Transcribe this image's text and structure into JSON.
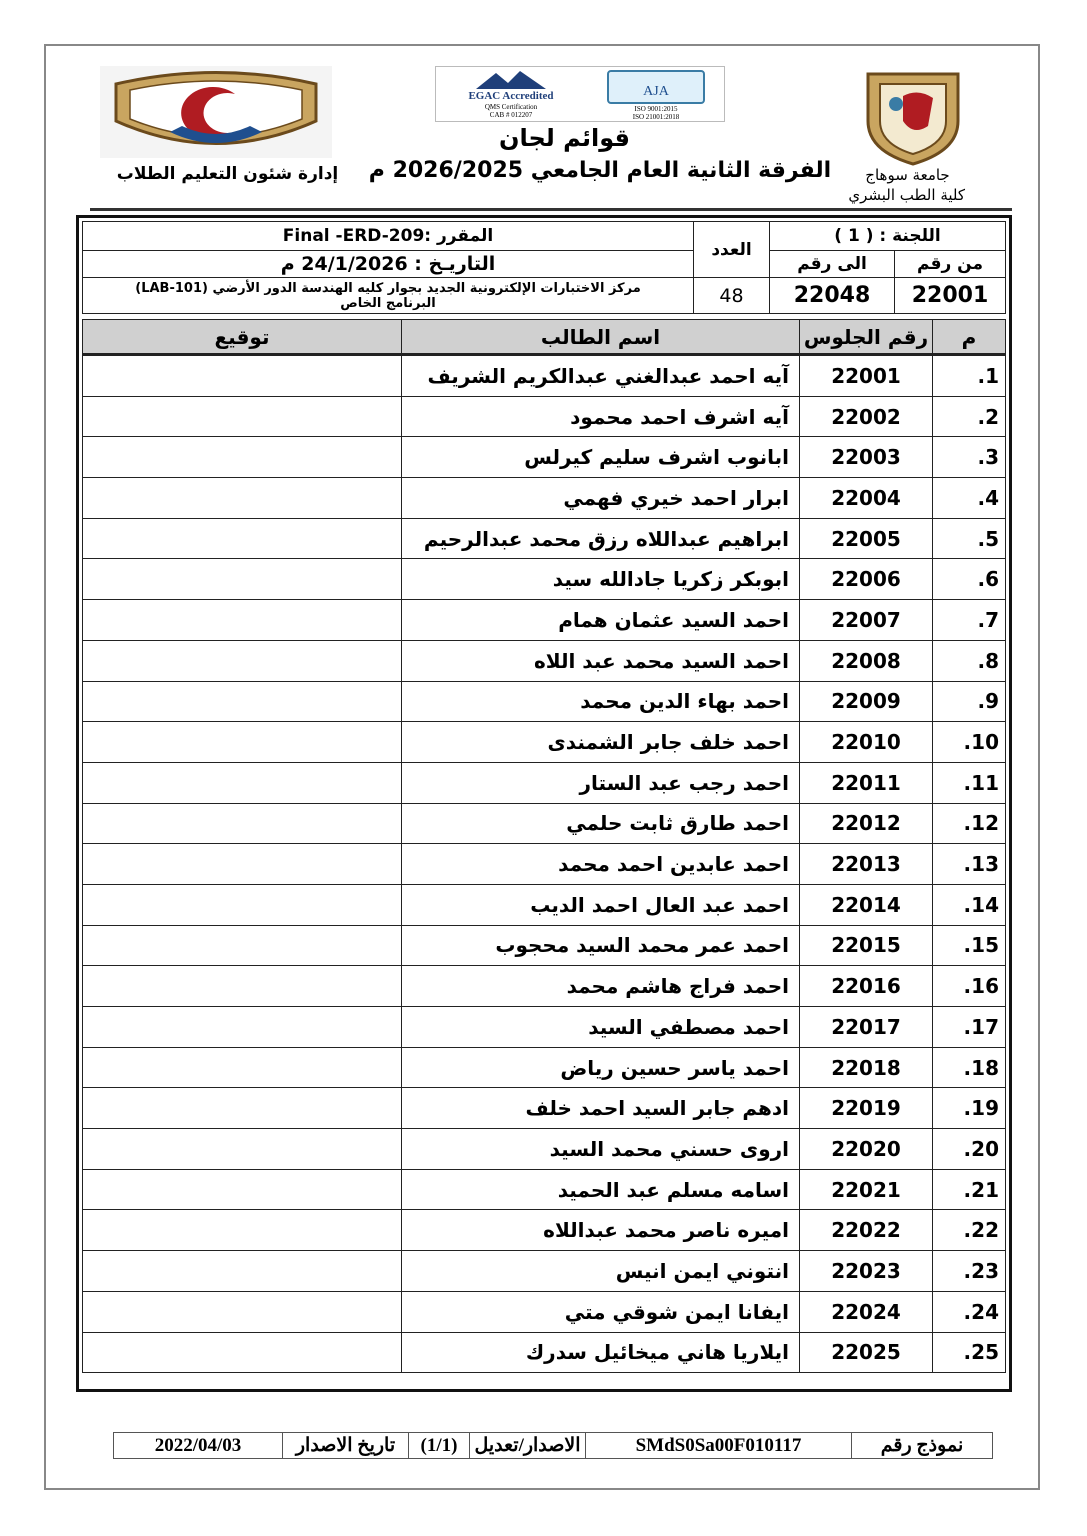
{
  "header": {
    "title": "قوائم لجان",
    "subtitle": "الفرقة الثانية العام الجامعي 2026/2025 م",
    "right_org_line1": "جامعة سوهاج",
    "right_org_line2": "كلية الطب البشري",
    "left_org": "إدارة شئون التعليم الطلاب",
    "logos": {
      "right": "جامعة سوهاج",
      "left": "Faculty of Medicine",
      "cert1": "EGAC Accredited QMS Certification EOMS Certification CAB # 012207",
      "cert2": "AJA ISO 9001:2015 ISO 21001:2018"
    }
  },
  "info": {
    "committee": "اللجنة : ( 1 )",
    "from_label": "من رقم",
    "to_label": "الى رقم",
    "from_value": "22001",
    "to_value": "22048",
    "count_label": "العدد",
    "count_value": "48",
    "course": "المقرر :Final -ERD-209",
    "date": "التاريـخ : 24/1/2026 م",
    "location_line1": "مركز الاختبارات الإلكترونية الجديد بجوار كليه الهندسة الدور الأرضي (LAB-101)",
    "location_line2": "البرنامج الخاص"
  },
  "columns": {
    "index": "م",
    "seat": "رقم الجلوس",
    "name": "اسم الطالب",
    "signature": "توقيع"
  },
  "rows": [
    {
      "i": "1.",
      "seat": "22001",
      "name": "آيه احمد عبدالغني عبدالكريم الشريف"
    },
    {
      "i": "2.",
      "seat": "22002",
      "name": "آيه اشرف احمد محمود"
    },
    {
      "i": "3.",
      "seat": "22003",
      "name": "ابانوب اشرف سليم كيرلس"
    },
    {
      "i": "4.",
      "seat": "22004",
      "name": "ابرار احمد خيري فهمي"
    },
    {
      "i": "5.",
      "seat": "22005",
      "name": "ابراهيم عبداللاه رزق محمد عبدالرحيم"
    },
    {
      "i": "6.",
      "seat": "22006",
      "name": "ابوبكر زكريا جادالله سيد"
    },
    {
      "i": "7.",
      "seat": "22007",
      "name": "احمد السيد عثمان همام"
    },
    {
      "i": "8.",
      "seat": "22008",
      "name": "احمد السيد محمد عبد اللاه"
    },
    {
      "i": "9.",
      "seat": "22009",
      "name": "احمد بهاء الدين محمد"
    },
    {
      "i": "10.",
      "seat": "22010",
      "name": "احمد خلف جابر الشمندى"
    },
    {
      "i": "11.",
      "seat": "22011",
      "name": "احمد رجب  عبد الستار"
    },
    {
      "i": "12.",
      "seat": "22012",
      "name": "احمد طارق ثابت حلمي"
    },
    {
      "i": "13.",
      "seat": "22013",
      "name": "احمد عابدين احمد محمد"
    },
    {
      "i": "14.",
      "seat": "22014",
      "name": "احمد عبد العال احمد الديب"
    },
    {
      "i": "15.",
      "seat": "22015",
      "name": "احمد عمر محمد السيد محجوب"
    },
    {
      "i": "16.",
      "seat": "22016",
      "name": "احمد فراج هاشم محمد"
    },
    {
      "i": "17.",
      "seat": "22017",
      "name": "احمد مصطفي السيد"
    },
    {
      "i": "18.",
      "seat": "22018",
      "name": "احمد ياسر حسين رياض"
    },
    {
      "i": "19.",
      "seat": "22019",
      "name": "ادهم جابر السيد احمد خلف"
    },
    {
      "i": "20.",
      "seat": "22020",
      "name": "اروى حسني محمد السيد"
    },
    {
      "i": "21.",
      "seat": "22021",
      "name": "اسامه مسلم عبد الحميد"
    },
    {
      "i": "22.",
      "seat": "22022",
      "name": "اميره ناصر محمد عبداللاه"
    },
    {
      "i": "23.",
      "seat": "22023",
      "name": "انتوني ايمن انيس"
    },
    {
      "i": "24.",
      "seat": "22024",
      "name": "ايفانا ايمن شوقي متي"
    },
    {
      "i": "25.",
      "seat": "22025",
      "name": "ايلاريا هاني ميخائيل سدرك"
    }
  ],
  "footer": {
    "form_label": "نموذج رقم",
    "form_value": "SMdS0Sa00F010117",
    "version_label": "الاصدار/تعديل",
    "version_value": "(1/1)",
    "issue_label": "تاريخ الاصدار",
    "issue_value": "2022/04/03"
  },
  "colors": {
    "header_fill": "#d0d0d0",
    "logo_red": "#b01c22",
    "logo_blue": "#1f4f8f",
    "logo_gold": "#c9a560"
  }
}
